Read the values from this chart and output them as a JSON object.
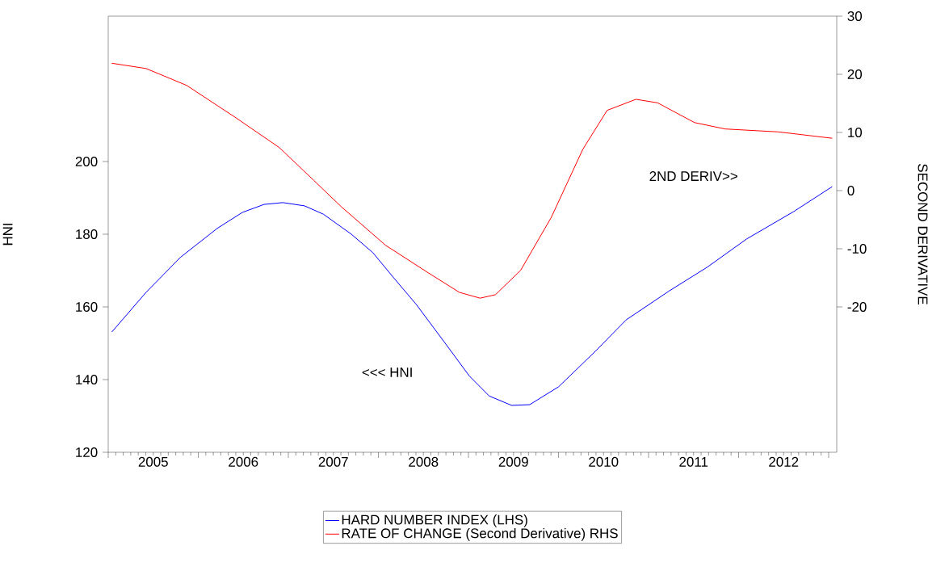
{
  "chart_data": {
    "type": "line",
    "ylabel": "HNI",
    "y2label": "SECOND DERIVATIVE",
    "xlim": [
      2005,
      2013.09
    ],
    "xticks": [
      {
        "value": 2005,
        "label": null
      },
      {
        "value": 2006,
        "label": null
      },
      {
        "value": 2007,
        "label": null
      },
      {
        "value": 2008,
        "label": null
      },
      {
        "value": 2009,
        "label": null
      },
      {
        "value": 2010,
        "label": null
      },
      {
        "value": 2011,
        "label": null
      },
      {
        "value": 2012,
        "label": null
      },
      {
        "value": 2013,
        "label": null
      },
      {
        "value": 2005.5,
        "label": "2005"
      },
      {
        "value": 2006.5,
        "label": "2006"
      },
      {
        "value": 2007.5,
        "label": "2007"
      },
      {
        "value": 2008.5,
        "label": "2008"
      },
      {
        "value": 2009.5,
        "label": "2009"
      },
      {
        "value": 2010.5,
        "label": "2010"
      },
      {
        "value": 2011.5,
        "label": "2011"
      },
      {
        "value": 2012.5,
        "label": "2012"
      }
    ],
    "ylim": [
      120,
      240
    ],
    "yticks": [
      120,
      140,
      160,
      180,
      200
    ],
    "y2lim": [
      -45,
      30
    ],
    "y2ticks": [
      -20,
      -10,
      0,
      10,
      20,
      30
    ],
    "legend": "bottom",
    "annotations": [
      "<<< HNI",
      "2ND DERIV>>"
    ],
    "series": [
      {
        "name": "HARD NUMBER INDEX (LHS)",
        "color": "#0000ff",
        "axis": "y",
        "x": [
          2005.04,
          2005.42,
          2005.8,
          2006.21,
          2006.49,
          2006.73,
          2006.94,
          2007.18,
          2007.39,
          2007.7,
          2007.94,
          2008.17,
          2008.42,
          2008.73,
          2009.01,
          2009.23,
          2009.48,
          2009.68,
          2010.0,
          2010.41,
          2010.75,
          2011.23,
          2011.65,
          2012.09,
          2012.61,
          2013.04
        ],
        "values": [
          153.1,
          164.0,
          173.6,
          181.6,
          186.0,
          188.2,
          188.7,
          187.8,
          185.5,
          180.0,
          174.9,
          168.0,
          160.7,
          150.4,
          141.0,
          135.5,
          132.9,
          133.1,
          138.0,
          147.8,
          156.4,
          164.4,
          170.9,
          178.7,
          186.2,
          193.1
        ]
      },
      {
        "name": "RATE OF CHANGE (Second Derivative) RHS",
        "color": "#ff0000",
        "axis": "y2",
        "x": [
          2005.04,
          2005.42,
          2005.87,
          2006.42,
          2006.9,
          2007.28,
          2007.59,
          2008.08,
          2008.56,
          2008.9,
          2009.13,
          2009.3,
          2009.58,
          2009.92,
          2010.27,
          2010.54,
          2010.86,
          2011.1,
          2011.51,
          2011.85,
          2012.44,
          2013.04
        ],
        "values": [
          21.9,
          21.0,
          18.1,
          12.5,
          7.4,
          1.8,
          -2.8,
          -9.4,
          -14.2,
          -17.5,
          -18.5,
          -17.9,
          -13.7,
          -4.6,
          7.1,
          13.8,
          15.7,
          15.1,
          11.7,
          10.6,
          10.1,
          9.0
        ]
      }
    ]
  }
}
